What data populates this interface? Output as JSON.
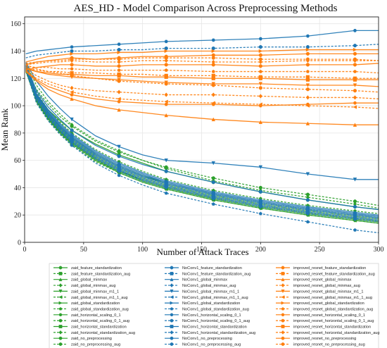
{
  "chart_data": {
    "type": "line",
    "title": "AES_HD - Model Comparison Across Preprocessing Methods",
    "xlabel": "Number of Attack Traces",
    "ylabel": "Mean Rank",
    "xlim": [
      0,
      300
    ],
    "ylim": [
      0,
      165
    ],
    "xticks": [
      0,
      50,
      100,
      150,
      200,
      250,
      300
    ],
    "yticks": [
      0,
      20,
      40,
      60,
      80,
      100,
      120,
      140,
      160
    ],
    "grid": true,
    "legend_position": "bottom",
    "x": [
      1,
      10,
      20,
      30,
      40,
      60,
      80,
      100,
      120,
      160,
      200,
      240,
      280,
      300
    ],
    "series": [
      {
        "name": "zaid_feature_standardization",
        "color": "#2ca02c",
        "dash": "",
        "marker": "circle",
        "values": [
          128,
          105,
          92,
          82,
          74,
          62,
          53,
          46,
          41,
          33,
          27,
          22,
          18,
          16
        ]
      },
      {
        "name": "zaid_feature_standardization_aug",
        "color": "#2ca02c",
        "dash": "3,2",
        "marker": "square",
        "values": [
          126,
          103,
          90,
          80,
          72,
          60,
          52,
          45,
          40,
          32,
          26,
          21,
          17,
          15
        ]
      },
      {
        "name": "zaid_global_minmax",
        "color": "#2ca02c",
        "dash": "",
        "marker": "triangle-up",
        "values": [
          127,
          106,
          93,
          83,
          75,
          63,
          54,
          47,
          42,
          34,
          28,
          23,
          19,
          17
        ]
      },
      {
        "name": "zaid_global_minmax_aug",
        "color": "#2ca02c",
        "dash": "3,2",
        "marker": "diamond",
        "values": [
          125,
          104,
          91,
          81,
          73,
          61,
          52,
          46,
          41,
          33,
          27,
          22,
          18,
          16
        ]
      },
      {
        "name": "zaid_global_minmax_m1_1",
        "color": "#2ca02c",
        "dash": "",
        "marker": "triangle-down",
        "values": [
          129,
          108,
          95,
          85,
          77,
          65,
          56,
          49,
          43,
          35,
          29,
          24,
          20,
          18
        ]
      },
      {
        "name": "zaid_global_minmax_m1_1_aug",
        "color": "#2ca02c",
        "dash": "3,2",
        "marker": "triangle-left",
        "values": [
          126,
          102,
          89,
          79,
          71,
          59,
          51,
          44,
          39,
          31,
          25,
          20,
          16,
          14
        ]
      },
      {
        "name": "zaid_global_standardization",
        "color": "#2ca02c",
        "dash": "",
        "marker": "triangle-right",
        "values": [
          128,
          104,
          91,
          81,
          73,
          61,
          52,
          45,
          40,
          32,
          26,
          21,
          17,
          15
        ]
      },
      {
        "name": "zaid_global_standardization_aug",
        "color": "#2ca02c",
        "dash": "3,2",
        "marker": "pentagon",
        "values": [
          130,
          110,
          97,
          88,
          80,
          68,
          59,
          52,
          46,
          38,
          32,
          27,
          23,
          21
        ]
      },
      {
        "name": "zaid_horizontal_scaling_0_1",
        "color": "#2ca02c",
        "dash": "",
        "marker": "hexagon",
        "values": [
          127,
          103,
          90,
          80,
          72,
          60,
          51,
          44,
          39,
          31,
          25,
          20,
          16,
          14
        ]
      },
      {
        "name": "zaid_horizontal_scaling_0_1_aug",
        "color": "#2ca02c",
        "dash": "3,2",
        "marker": "circle",
        "values": [
          128,
          107,
          94,
          84,
          76,
          64,
          55,
          48,
          43,
          35,
          29,
          24,
          20,
          18
        ]
      },
      {
        "name": "zaid_horizontal_standardization",
        "color": "#2ca02c",
        "dash": "",
        "marker": "square",
        "values": [
          126,
          104,
          91,
          81,
          73,
          61,
          52,
          45,
          40,
          32,
          26,
          21,
          17,
          15
        ]
      },
      {
        "name": "zaid_horizontal_standardization_aug",
        "color": "#2ca02c",
        "dash": "3,2",
        "marker": "diamond",
        "values": [
          131,
          115,
          103,
          94,
          86,
          75,
          67,
          60,
          54,
          45,
          38,
          33,
          28,
          25
        ]
      },
      {
        "name": "zaid_no_preprocessing",
        "color": "#2ca02c",
        "dash": "",
        "marker": "circle",
        "values": [
          125,
          108,
          97,
          89,
          82,
          72,
          64,
          58,
          52,
          44,
          37,
          31,
          26,
          24
        ]
      },
      {
        "name": "zaid_no_preprocessing_aug",
        "color": "#2ca02c",
        "dash": "3,2",
        "marker": "circle",
        "values": [
          128,
          112,
          101,
          92,
          85,
          74,
          66,
          60,
          55,
          47,
          40,
          35,
          30,
          27
        ]
      },
      {
        "name": "NoConv1_feature_standardization",
        "color": "#1f77b4",
        "dash": "",
        "marker": "circle",
        "values": [
          130,
          108,
          96,
          86,
          78,
          66,
          57,
          50,
          44,
          36,
          30,
          25,
          21,
          19
        ]
      },
      {
        "name": "NoConv1_feature_standardization_aug",
        "color": "#1f77b4",
        "dash": "3,2",
        "marker": "square",
        "values": [
          128,
          105,
          92,
          82,
          74,
          62,
          53,
          46,
          41,
          33,
          27,
          22,
          18,
          16
        ]
      },
      {
        "name": "NoConv1_global_minmax",
        "color": "#1f77b4",
        "dash": "",
        "marker": "triangle-up",
        "values": [
          129,
          109,
          97,
          87,
          79,
          67,
          58,
          51,
          45,
          37,
          31,
          26,
          22,
          20
        ]
      },
      {
        "name": "NoConv1_global_minmax_aug",
        "color": "#1f77b4",
        "dash": "3,2",
        "marker": "diamond",
        "values": [
          127,
          104,
          91,
          81,
          73,
          61,
          52,
          45,
          40,
          32,
          26,
          21,
          17,
          15
        ]
      },
      {
        "name": "NoConv1_global_minmax_m1_1",
        "color": "#1f77b4",
        "dash": "",
        "marker": "triangle-down",
        "values": [
          132,
          118,
          107,
          98,
          90,
          78,
          70,
          64,
          60,
          58,
          55,
          50,
          46,
          46
        ]
      },
      {
        "name": "NoConv1_global_minmax_m1_1_aug",
        "color": "#1f77b4",
        "dash": "3,2",
        "marker": "triangle-left",
        "values": [
          128,
          106,
          93,
          83,
          75,
          63,
          54,
          47,
          42,
          34,
          28,
          23,
          19,
          17
        ]
      },
      {
        "name": "NoConv1_global_standardization",
        "color": "#1f77b4",
        "dash": "",
        "marker": "triangle-right",
        "values": [
          129,
          107,
          94,
          84,
          76,
          64,
          55,
          48,
          43,
          35,
          29,
          24,
          20,
          18
        ]
      },
      {
        "name": "NoConv1_global_standardization_aug",
        "color": "#1f77b4",
        "dash": "3,2",
        "marker": "pentagon",
        "values": [
          126,
          102,
          89,
          79,
          71,
          58,
          49,
          42,
          36,
          28,
          21,
          15,
          9,
          7
        ]
      },
      {
        "name": "NoConv1_horizontal_scaling_0_1",
        "color": "#1f77b4",
        "dash": "",
        "marker": "hexagon",
        "values": [
          138,
          140,
          141,
          142,
          143,
          144,
          145,
          146,
          147,
          148,
          149,
          151,
          155,
          155
        ]
      },
      {
        "name": "NoConv1_horizontal_scaling_0_1_aug",
        "color": "#1f77b4",
        "dash": "3,2",
        "marker": "circle",
        "values": [
          135,
          137,
          138,
          139,
          140,
          140,
          141,
          141,
          142,
          142,
          143,
          143,
          144,
          145
        ]
      },
      {
        "name": "NoConv1_horizontal_standardization",
        "color": "#1f77b4",
        "dash": "",
        "marker": "square",
        "values": [
          130,
          108,
          95,
          85,
          77,
          65,
          56,
          49,
          44,
          36,
          30,
          25,
          21,
          19
        ]
      },
      {
        "name": "NoConv1_horizontal_standardization_aug",
        "color": "#1f77b4",
        "dash": "3,2",
        "marker": "diamond",
        "values": [
          127,
          105,
          92,
          82,
          74,
          62,
          53,
          46,
          41,
          33,
          27,
          22,
          18,
          16
        ]
      },
      {
        "name": "NoConv1_no_preprocessing",
        "color": "#1f77b4",
        "dash": "",
        "marker": "circle",
        "values": [
          131,
          111,
          99,
          90,
          82,
          71,
          63,
          57,
          52,
          44,
          37,
          31,
          26,
          24
        ]
      },
      {
        "name": "NoConv1_no_preprocessing_aug",
        "color": "#1f77b4",
        "dash": "3,2",
        "marker": "circle",
        "values": [
          129,
          107,
          94,
          84,
          76,
          64,
          55,
          48,
          43,
          35,
          29,
          24,
          20,
          18
        ]
      },
      {
        "name": "improved_resnet_feature_standardization",
        "color": "#ff7f0e",
        "dash": "",
        "marker": "circle",
        "values": [
          130,
          132,
          133,
          134,
          135,
          134,
          135,
          136,
          136,
          137,
          137,
          138,
          138,
          138
        ]
      },
      {
        "name": "improved_resnet_feature_standardization_aug",
        "color": "#ff7f0e",
        "dash": "3,2",
        "marker": "square",
        "values": [
          128,
          126,
          125,
          125,
          124,
          124,
          123,
          123,
          122,
          122,
          121,
          121,
          120,
          120
        ]
      },
      {
        "name": "improved_resnet_global_minmax",
        "color": "#ff7f0e",
        "dash": "",
        "marker": "triangle-up",
        "values": [
          125,
          118,
          112,
          108,
          105,
          100,
          97,
          95,
          93,
          90,
          88,
          87,
          86,
          86
        ]
      },
      {
        "name": "improved_resnet_global_minmax_aug",
        "color": "#ff7f0e",
        "dash": "3,2",
        "marker": "diamond",
        "values": [
          130,
          131,
          132,
          132,
          133,
          132,
          132,
          133,
          133,
          132,
          132,
          133,
          133,
          133
        ]
      },
      {
        "name": "improved_resnet_global_minmax_m1_1",
        "color": "#ff7f0e",
        "dash": "",
        "marker": "triangle-down",
        "values": [
          127,
          125,
          123,
          122,
          121,
          120,
          119,
          118,
          117,
          116,
          116,
          115,
          115,
          114
        ]
      },
      {
        "name": "improved_resnet_global_minmax_m1_1_aug",
        "color": "#ff7f0e",
        "dash": "3,2",
        "marker": "triangle-left",
        "values": [
          125,
          120,
          116,
          113,
          110,
          107,
          105,
          104,
          103,
          102,
          101,
          100,
          99,
          98
        ]
      },
      {
        "name": "improved_resnet_global_standardization",
        "color": "#ff7f0e",
        "dash": "",
        "marker": "triangle-right",
        "values": [
          132,
          134,
          136,
          137,
          138,
          138,
          139,
          139,
          140,
          140,
          140,
          141,
          141,
          141
        ]
      },
      {
        "name": "improved_resnet_global_standardization_aug",
        "color": "#ff7f0e",
        "dash": "3,2",
        "marker": "pentagon",
        "values": [
          129,
          128,
          128,
          127,
          127,
          126,
          126,
          126,
          126,
          125,
          125,
          125,
          125,
          124
        ]
      },
      {
        "name": "improved_resnet_horizontal_scaling_0_1",
        "color": "#ff7f0e",
        "dash": "",
        "marker": "hexagon",
        "values": [
          126,
          119,
          114,
          111,
          108,
          105,
          103,
          102,
          101,
          101,
          100,
          101,
          102,
          102
        ]
      },
      {
        "name": "improved_resnet_horizontal_scaling_0_1_aug",
        "color": "#ff7f0e",
        "dash": "3,2",
        "marker": "circle",
        "values": [
          131,
          132,
          133,
          133,
          134,
          134,
          134,
          135,
          135,
          135,
          134,
          134,
          134,
          133
        ]
      },
      {
        "name": "improved_resnet_horizontal_standardization",
        "color": "#ff7f0e",
        "dash": "",
        "marker": "square",
        "values": [
          128,
          125,
          124,
          123,
          123,
          122,
          122,
          121,
          121,
          120,
          120,
          119,
          119,
          119
        ]
      },
      {
        "name": "improved_resnet_horizontal_standardization_aug",
        "color": "#ff7f0e",
        "dash": "3,2",
        "marker": "diamond",
        "values": [
          127,
          122,
          118,
          115,
          113,
          111,
          110,
          109,
          108,
          108,
          107,
          106,
          106,
          105
        ]
      },
      {
        "name": "improved_resnet_no_preprocessing",
        "color": "#ff7f0e",
        "dash": "",
        "marker": "circle",
        "values": [
          126,
          128,
          129,
          130,
          130,
          129,
          129,
          130,
          130,
          130,
          129,
          130,
          130,
          131
        ]
      },
      {
        "name": "improved_resnet_no_preprocessing_aug",
        "color": "#ff7f0e",
        "dash": "3,2",
        "marker": "circle",
        "values": [
          130,
          127,
          125,
          124,
          122,
          120,
          118,
          117,
          116,
          115,
          113,
          112,
          111,
          110
        ]
      }
    ]
  }
}
